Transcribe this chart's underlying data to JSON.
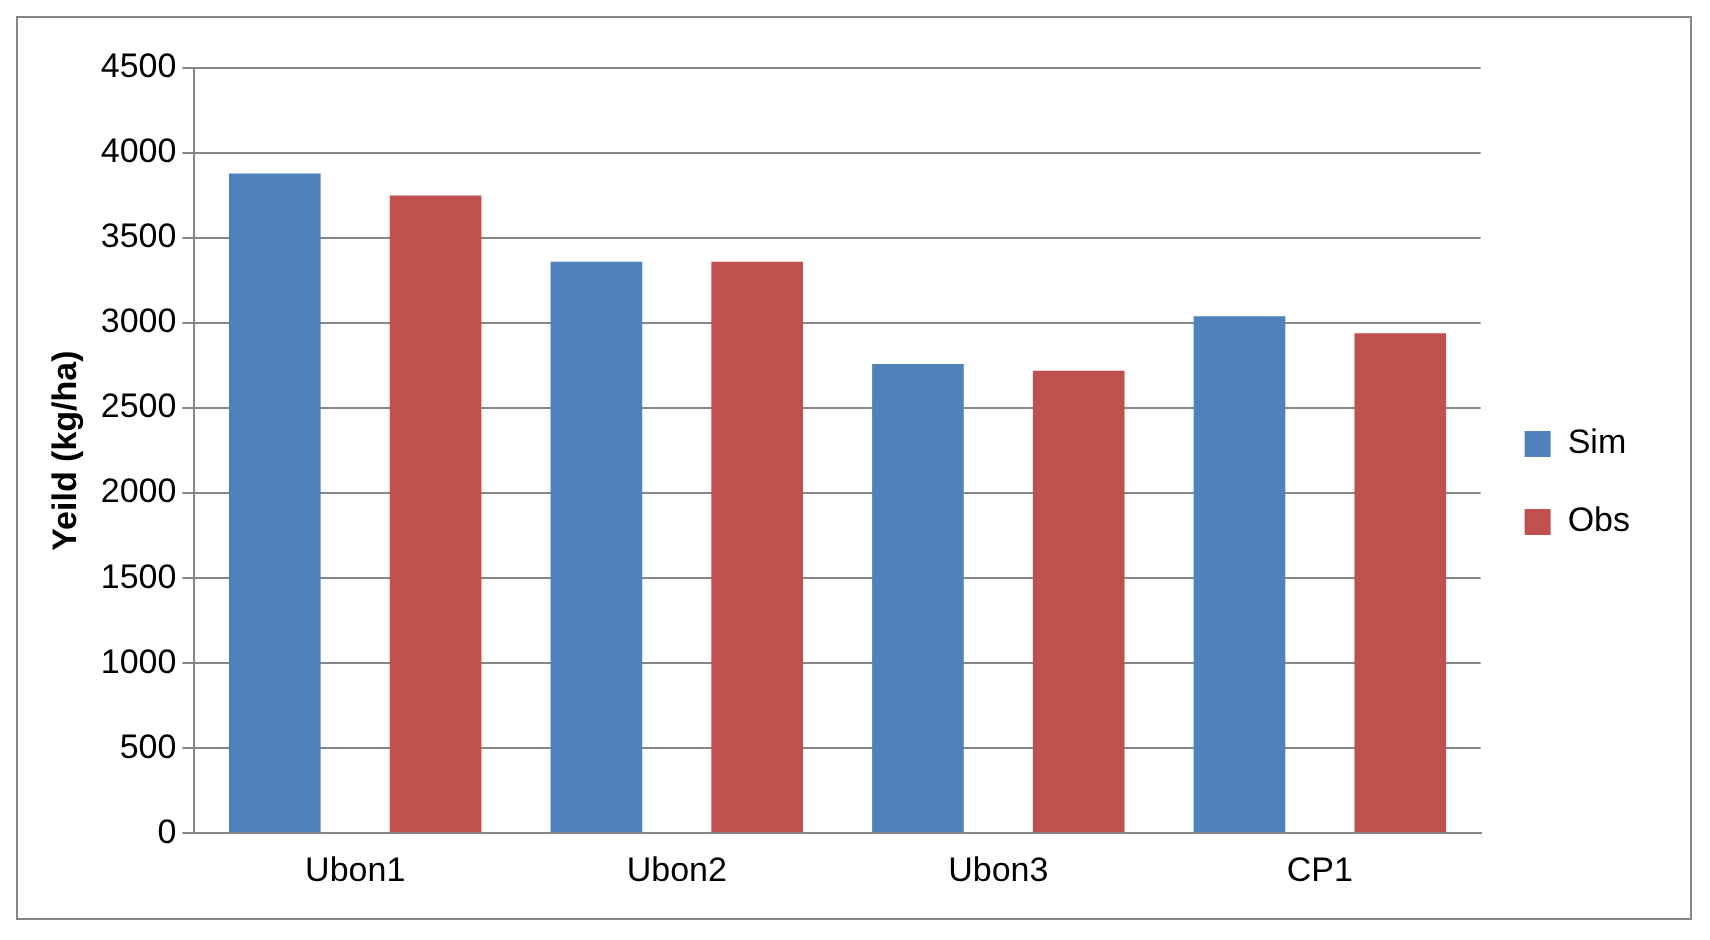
{
  "chart_data": {
    "type": "bar",
    "ylabel": "Yeild (kg/ha)",
    "categories": [
      "Ubon1",
      "Ubon2",
      "Ubon3",
      "CP1"
    ],
    "series": [
      {
        "name": "Sim",
        "color": "#4f81bd",
        "values": [
          3880,
          3360,
          2760,
          3040
        ]
      },
      {
        "name": "Obs",
        "color": "#c0504d",
        "values": [
          3750,
          3360,
          2720,
          2940
        ]
      }
    ],
    "ylim": [
      0,
      4500
    ],
    "yticks": [
      0,
      500,
      1000,
      1500,
      2000,
      2500,
      3000,
      3500,
      4000,
      4500
    ],
    "grid": "y",
    "legend": "right"
  }
}
